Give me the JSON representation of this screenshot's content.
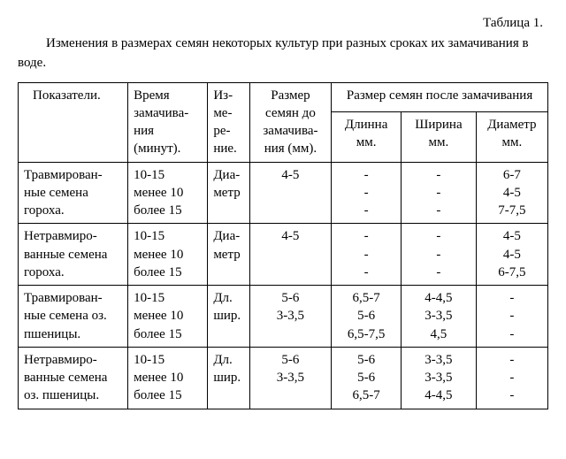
{
  "table_label": "Таблица 1.",
  "caption": "Изменения в размерах семян некоторых культур при разных сроках их замачивания в воде.",
  "headers": {
    "indicators": "Показатели.",
    "time": "Время замачива-ния (минут).",
    "measure": "Из-ме-ре-ние.",
    "before": "Размер семян до замачива-ния (мм).",
    "after_group": "Размер семян после замачивания",
    "length": "Длинна мм.",
    "width": "Ширина мм.",
    "diameter": "Диаметр мм."
  },
  "time_lines": {
    "l1": "10-15",
    "l2": "менее 10",
    "l3": "более 15"
  },
  "rows": [
    {
      "ind": "Травмирован-ные семена гороха.",
      "meas": "Диа-метр",
      "before_l1": "",
      "before_l2": "4-5",
      "before_l3": "",
      "len": {
        "l1": "-",
        "l2": "-",
        "l3": "-"
      },
      "wid": {
        "l1": "-",
        "l2": "-",
        "l3": "-"
      },
      "dia": {
        "l1": "6-7",
        "l2": "4-5",
        "l3": "7-7,5"
      }
    },
    {
      "ind": "Нетравмиро-ванные семена гороха.",
      "meas": "Диа-метр",
      "before_l1": "",
      "before_l2": "4-5",
      "before_l3": "",
      "len": {
        "l1": "-",
        "l2": "-",
        "l3": "-"
      },
      "wid": {
        "l1": "-",
        "l2": "-",
        "l3": "-"
      },
      "dia": {
        "l1": "4-5",
        "l2": "4-5",
        "l3": "6-7,5"
      }
    },
    {
      "ind": "Травмирован-ные семена оз. пшеницы.",
      "meas": "Дл. шир.",
      "before_l1": "5-6",
      "before_l2": "3-3,5",
      "before_l3": "",
      "len": {
        "l1": "6,5-7",
        "l2": "5-6",
        "l3": "6,5-7,5"
      },
      "wid": {
        "l1": "4-4,5",
        "l2": "3-3,5",
        "l3": "4,5"
      },
      "dia": {
        "l1": "-",
        "l2": "-",
        "l3": "-"
      }
    },
    {
      "ind": "Нетравмиро-ванные семена оз. пшеницы.",
      "meas": "Дл. шир.",
      "before_l1": "5-6",
      "before_l2": "3-3,5",
      "before_l3": "",
      "len": {
        "l1": "5-6",
        "l2": "5-6",
        "l3": "6,5-7"
      },
      "wid": {
        "l1": "3-3,5",
        "l2": "3-3,5",
        "l3": "4-4,5"
      },
      "dia": {
        "l1": "-",
        "l2": "-",
        "l3": "-"
      }
    }
  ]
}
